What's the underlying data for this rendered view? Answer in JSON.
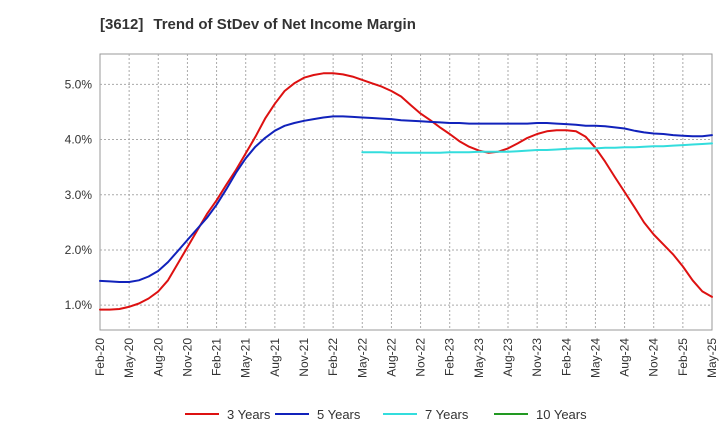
{
  "title": {
    "code": "[3612]",
    "text": "Trend of StDev of Net Income Margin"
  },
  "chart_data": {
    "type": "line",
    "x_labels": [
      "Feb-20",
      "May-20",
      "Aug-20",
      "Nov-20",
      "Feb-21",
      "May-21",
      "Aug-21",
      "Nov-21",
      "Feb-22",
      "May-22",
      "Aug-22",
      "Nov-22",
      "Feb-23",
      "May-23",
      "Aug-23",
      "Nov-23",
      "Feb-24",
      "May-24",
      "Aug-24",
      "Nov-24",
      "Feb-25",
      "May-25"
    ],
    "y_ticks": [
      1.0,
      2.0,
      3.0,
      4.0,
      5.0
    ],
    "y_tick_labels": [
      "1.0%",
      "2.0%",
      "3.0%",
      "4.0%",
      "5.0%"
    ],
    "ylim": [
      0.55,
      5.55
    ],
    "grid": true,
    "legend_position": "bottom",
    "series": [
      {
        "name": "3 Years",
        "color": "#dd1111",
        "values": [
          0.92,
          0.92,
          0.93,
          0.97,
          1.03,
          1.12,
          1.25,
          1.45,
          1.75,
          2.05,
          2.35,
          2.65,
          2.9,
          3.18,
          3.45,
          3.75,
          4.05,
          4.38,
          4.65,
          4.88,
          5.02,
          5.12,
          5.17,
          5.2,
          5.2,
          5.18,
          5.14,
          5.08,
          5.02,
          4.96,
          4.88,
          4.78,
          4.62,
          4.47,
          4.35,
          4.22,
          4.1,
          3.97,
          3.87,
          3.8,
          3.76,
          3.78,
          3.84,
          3.93,
          4.03,
          4.1,
          4.15,
          4.17,
          4.17,
          4.15,
          4.05,
          3.85,
          3.6,
          3.32,
          3.05,
          2.78,
          2.5,
          2.28,
          2.1,
          1.92,
          1.7,
          1.45,
          1.25,
          1.15
        ]
      },
      {
        "name": "5 Years",
        "color": "#1122bb",
        "values": [
          1.44,
          1.43,
          1.42,
          1.42,
          1.45,
          1.52,
          1.62,
          1.78,
          1.98,
          2.18,
          2.38,
          2.58,
          2.82,
          3.1,
          3.4,
          3.66,
          3.87,
          4.03,
          4.16,
          4.25,
          4.3,
          4.34,
          4.37,
          4.4,
          4.42,
          4.42,
          4.41,
          4.4,
          4.39,
          4.38,
          4.37,
          4.35,
          4.34,
          4.33,
          4.32,
          4.31,
          4.3,
          4.3,
          4.29,
          4.29,
          4.29,
          4.29,
          4.29,
          4.29,
          4.29,
          4.3,
          4.3,
          4.29,
          4.28,
          4.27,
          4.25,
          4.25,
          4.24,
          4.22,
          4.2,
          4.16,
          4.13,
          4.11,
          4.1,
          4.08,
          4.07,
          4.06,
          4.06,
          4.08
        ]
      },
      {
        "name": "7 Years",
        "color": "#33dddd",
        "start_index": 27,
        "values": [
          3.77,
          3.77,
          3.77,
          3.76,
          3.76,
          3.76,
          3.76,
          3.76,
          3.76,
          3.77,
          3.77,
          3.77,
          3.78,
          3.78,
          3.78,
          3.78,
          3.79,
          3.8,
          3.81,
          3.81,
          3.82,
          3.83,
          3.84,
          3.84,
          3.84,
          3.85,
          3.85,
          3.86,
          3.86,
          3.87,
          3.88,
          3.88,
          3.89,
          3.9,
          3.91,
          3.92,
          3.93
        ]
      },
      {
        "name": "10 Years",
        "color": "#229922",
        "values": []
      }
    ]
  }
}
